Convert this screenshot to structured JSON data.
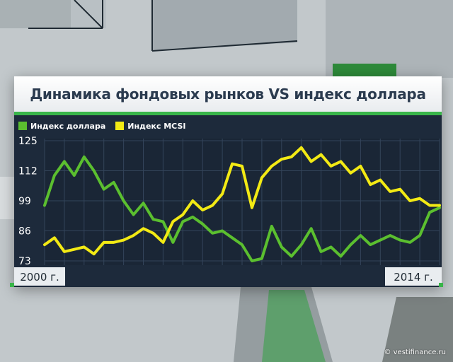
{
  "header": {
    "title": "Динамика фондовых рынков VS индекс доллара"
  },
  "colors": {
    "dollar": "#5bbf2f",
    "msci": "#f3ea14",
    "panel": "#1d2a3b",
    "accent": "#39b54a"
  },
  "credit": "© vestifinance.ru",
  "chart_data": {
    "type": "line",
    "title": "Динамика фондовых рынков VS индекс доллара",
    "legend_position": "top-left",
    "grid": true,
    "yticks": [
      125,
      112,
      99,
      86,
      73
    ],
    "ylim": [
      73,
      125
    ],
    "xlim": [
      0,
      40
    ],
    "start_label": "2000 г.",
    "end_label": "2014 г.",
    "x": [
      0,
      1,
      2,
      3,
      4,
      5,
      6,
      7,
      8,
      9,
      10,
      11,
      12,
      13,
      14,
      15,
      16,
      17,
      18,
      19,
      20,
      21,
      22,
      23,
      24,
      25,
      26,
      27,
      28,
      29,
      30,
      31,
      32,
      33,
      34,
      35,
      36,
      37,
      38,
      39,
      40
    ],
    "series": [
      {
        "name": "Индекс доллара",
        "color": "#5bbf2f",
        "values": [
          97,
          110,
          116,
          110,
          118,
          112,
          104,
          107,
          99,
          93,
          98,
          91,
          90,
          81,
          90,
          92,
          89,
          85,
          86,
          83,
          80,
          73,
          74,
          88,
          79,
          75,
          80,
          87,
          77,
          79,
          75,
          80,
          84,
          80,
          82,
          84,
          82,
          81,
          84,
          94,
          96
        ]
      },
      {
        "name": "Индекс MCSI",
        "color": "#f3ea14",
        "values": [
          80,
          83,
          77,
          78,
          79,
          76,
          81,
          81,
          82,
          84,
          87,
          85,
          81,
          90,
          93,
          99,
          95,
          97,
          102,
          115,
          114,
          96,
          109,
          114,
          117,
          118,
          122,
          116,
          119,
          114,
          116,
          111,
          114,
          106,
          108,
          103,
          104,
          99,
          100,
          97,
          97
        ]
      }
    ]
  }
}
